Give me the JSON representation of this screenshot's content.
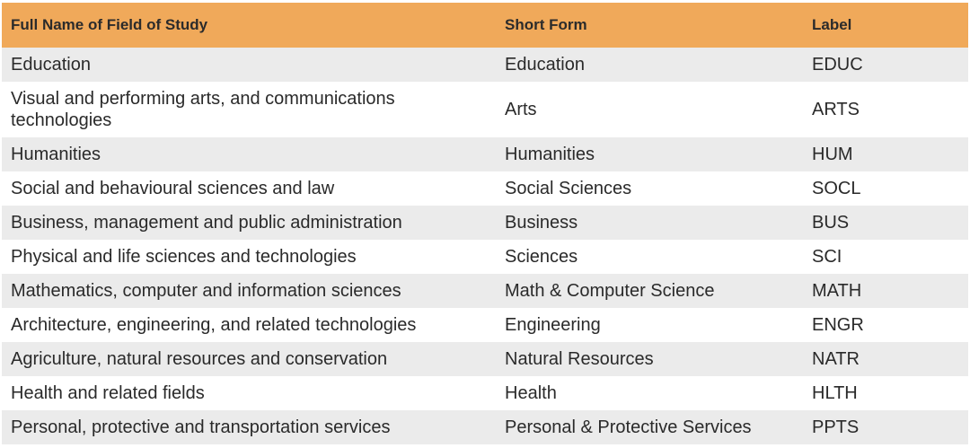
{
  "table": {
    "headers": [
      "Full Name of Field of Study",
      "Short Form",
      "Label"
    ],
    "rows": [
      {
        "full": "Education",
        "short": "Education",
        "label": "EDUC"
      },
      {
        "full": "Visual and performing arts, and communications technologies",
        "short": "Arts",
        "label": "ARTS"
      },
      {
        "full": "Humanities",
        "short": "Humanities",
        "label": "HUM"
      },
      {
        "full": "Social and behavioural sciences and law",
        "short": "Social Sciences",
        "label": "SOCL"
      },
      {
        "full": "Business, management and public administration",
        "short": "Business",
        "label": "BUS"
      },
      {
        "full": "Physical and life sciences and technologies",
        "short": "Sciences",
        "label": "SCI"
      },
      {
        "full": "Mathematics, computer and information sciences",
        "short": "Math & Computer Science",
        "label": "MATH"
      },
      {
        "full": "Architecture, engineering, and related technologies",
        "short": "Engineering",
        "label": "ENGR"
      },
      {
        "full": "Agriculture, natural resources and conservation",
        "short": "Natural Resources",
        "label": "NATR"
      },
      {
        "full": "Health and related fields",
        "short": "Health",
        "label": "HLTH"
      },
      {
        "full": "Personal, protective and transportation services",
        "short": "Personal & Protective Services",
        "label": "PPTS"
      }
    ]
  },
  "colors": {
    "header_background": "#f0a95a",
    "row_alt_background": "#ebebeb",
    "row_plain_background": "#ffffff"
  }
}
